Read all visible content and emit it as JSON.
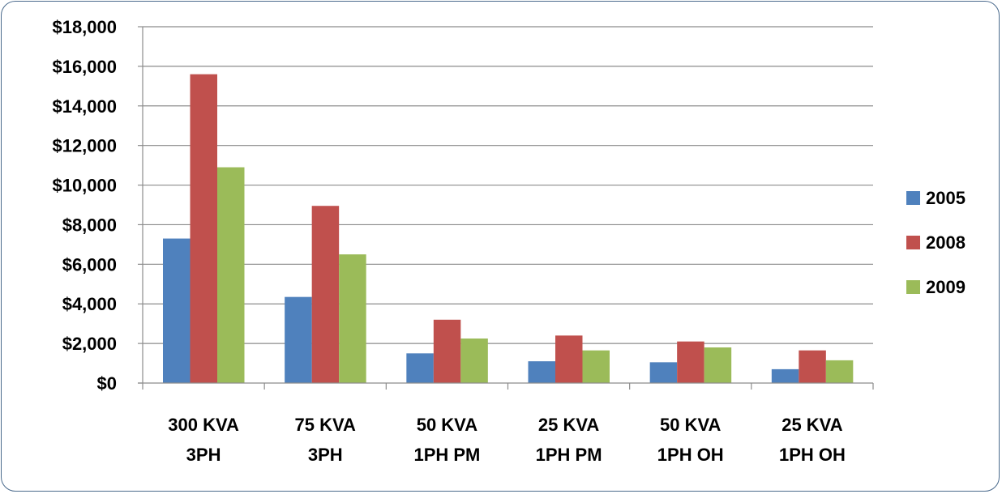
{
  "chart_data": {
    "type": "bar",
    "categories": [
      [
        "300 KVA",
        "3PH"
      ],
      [
        "75 KVA",
        "3PH"
      ],
      [
        "50 KVA",
        "1PH PM"
      ],
      [
        "25 KVA",
        "1PH PM"
      ],
      [
        "50 KVA",
        "1PH OH"
      ],
      [
        "25 KVA",
        "1PH OH"
      ]
    ],
    "series": [
      {
        "name": "2005",
        "color": "#4f81bd",
        "values": [
          7300,
          4350,
          1500,
          1100,
          1050,
          700
        ]
      },
      {
        "name": "2008",
        "color": "#c0504d",
        "values": [
          15600,
          8950,
          3200,
          2400,
          2100,
          1650
        ]
      },
      {
        "name": "2009",
        "color": "#9bbb59",
        "values": [
          10900,
          6500,
          2250,
          1650,
          1800,
          1150
        ]
      }
    ],
    "ylim": [
      0,
      18000
    ],
    "yticks": [
      0,
      2000,
      4000,
      6000,
      8000,
      10000,
      12000,
      14000,
      16000,
      18000
    ],
    "ytick_labels": [
      "$0",
      "$2,000",
      "$4,000",
      "$6,000",
      "$8,000",
      "$10,000",
      "$12,000",
      "$14,000",
      "$16,000",
      "$18,000"
    ],
    "grid": true,
    "legend_position": "right"
  }
}
